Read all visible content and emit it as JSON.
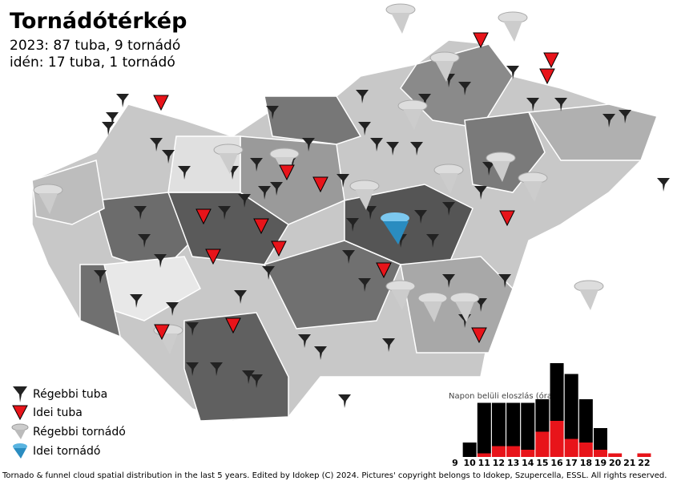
{
  "header": {
    "title": "Tornádótérkép",
    "line1": "2023: 87 tuba, 9 tornádó",
    "line2": "idén: 17 tuba, 1 tornádó"
  },
  "legend": [
    "Régebbi tuba",
    "Idei tuba",
    "Régebbi tornádó",
    "Idei tornádó"
  ],
  "footer": "Tornado & funnel cloud spatial distribution in the last 5 years. Edited by Idokep (C) 2024. Pictures' copyright belongs to Idokep, Szupercella, ESSL. All rights reserved.",
  "chart_data": {
    "type": "bar",
    "title": "Napon belüli eloszlás (óra)",
    "categories": [
      "9",
      "10",
      "11",
      "12",
      "13",
      "14",
      "15",
      "16",
      "17",
      "18",
      "19",
      "20",
      "21",
      "22"
    ],
    "series": [
      {
        "color": "#e8141a",
        "values": [
          0,
          0,
          1,
          3,
          3,
          2,
          7,
          10,
          5,
          4,
          2,
          1,
          0,
          1
        ]
      },
      {
        "color": "#000000",
        "values": [
          0,
          4,
          14,
          12,
          12,
          13,
          9,
          16,
          18,
          12,
          6,
          0,
          0,
          0
        ]
      }
    ]
  }
}
